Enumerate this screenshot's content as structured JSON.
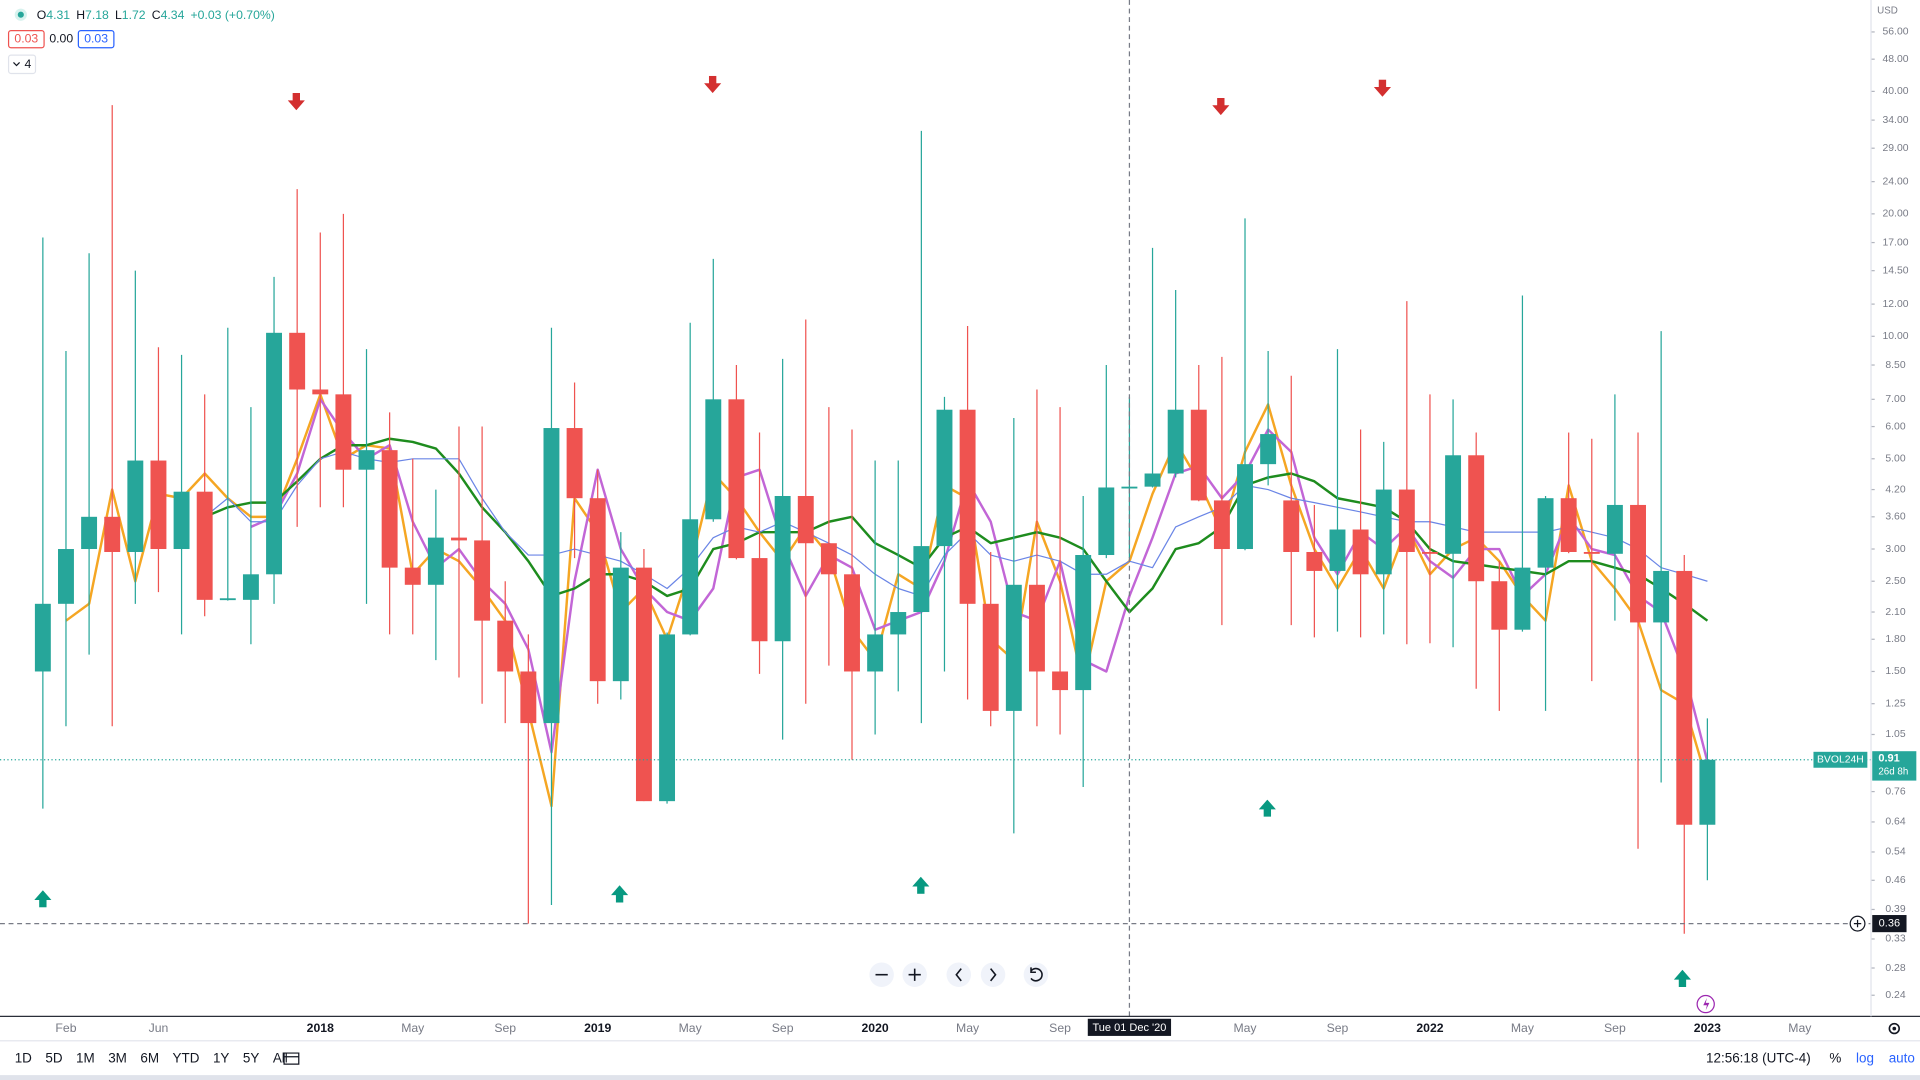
{
  "legend": {
    "ohlc": [
      {
        "label": "O",
        "value": "4.31"
      },
      {
        "label": "H",
        "value": "7.18"
      },
      {
        "label": "L",
        "value": "1.72"
      },
      {
        "label": "C",
        "value": "4.34"
      }
    ],
    "change": "+0.03 (+0.70%)",
    "indicator_values": [
      "0.03",
      "0.00",
      "0.03"
    ],
    "collapse_count": "4"
  },
  "chart_data": {
    "type": "candlestick",
    "log": true,
    "currency": "USD",
    "categories": [
      null,
      "Feb",
      null,
      null,
      null,
      "Jun",
      null,
      null,
      null,
      null,
      null,
      null,
      "2018",
      null,
      null,
      null,
      "May",
      null,
      null,
      null,
      "Sep",
      null,
      null,
      null,
      "2019",
      null,
      null,
      null,
      "May",
      null,
      null,
      null,
      "Sep",
      null,
      null,
      null,
      "2020",
      null,
      null,
      null,
      "May",
      null,
      null,
      null,
      "Sep",
      null,
      null,
      null,
      null,
      null,
      null,
      null,
      "May",
      null,
      null,
      null,
      "Sep",
      null,
      null,
      null,
      "2022",
      null,
      null,
      null,
      "May",
      null,
      null,
      null,
      "Sep",
      null,
      null,
      null,
      "2023"
    ],
    "future_categories": [
      null,
      null,
      null,
      "May"
    ],
    "open": [
      1.5,
      2.2,
      3.0,
      3.6,
      2.95,
      4.95,
      3.0,
      4.15,
      2.25,
      2.25,
      2.6,
      10.2,
      7.4,
      7.2,
      4.7,
      5.25,
      2.7,
      2.45,
      3.2,
      3.15,
      2.0,
      1.5,
      1.12,
      5.95,
      4.0,
      1.42,
      2.7,
      0.72,
      1.85,
      3.55,
      7.0,
      2.85,
      1.78,
      4.05,
      3.1,
      2.6,
      1.5,
      1.85,
      2.1,
      3.05,
      6.6,
      2.2,
      1.2,
      2.45,
      1.5,
      1.35,
      2.9,
      4.25,
      4.27,
      4.6,
      6.6,
      3.95,
      3.0,
      4.85,
      3.95,
      2.95,
      2.65,
      3.35,
      2.6,
      4.2,
      2.95,
      2.92,
      5.1,
      2.5,
      1.9,
      2.7,
      4.0,
      2.95,
      2.92,
      3.85,
      1.98,
      2.65,
      0.63
    ],
    "high": [
      17.5,
      9.2,
      16,
      37,
      14.5,
      9.4,
      9.0,
      7.2,
      10.5,
      6.7,
      14,
      23,
      18,
      20,
      9.3,
      6.5,
      5.0,
      4.2,
      6.0,
      6.0,
      2.5,
      1.85,
      10.5,
      7.7,
      4.7,
      3.3,
      3.0,
      1.87,
      10.8,
      15.5,
      8.5,
      5.8,
      8.8,
      11,
      6.7,
      5.9,
      4.95,
      4.95,
      32,
      7.1,
      10.6,
      2.95,
      6.3,
      7.4,
      6.7,
      4.05,
      8.5,
      7.1,
      16.5,
      13,
      8.5,
      8.9,
      19.5,
      9.2,
      8.0,
      3.85,
      9.3,
      5.9,
      5.5,
      12.2,
      7.2,
      7.0,
      5.8,
      2.8,
      12.6,
      4.05,
      5.8,
      5.6,
      7.2,
      5.8,
      10.3,
      2.9,
      1.15
    ],
    "low": [
      0.69,
      1.1,
      1.65,
      1.1,
      2.2,
      2.35,
      1.85,
      2.05,
      2.24,
      1.75,
      2.2,
      3.4,
      3.8,
      3.8,
      2.2,
      1.85,
      1.85,
      1.6,
      1.45,
      1.25,
      1.12,
      0.36,
      0.4,
      2.85,
      1.25,
      1.28,
      0.72,
      0.71,
      1.84,
      3.5,
      2.83,
      1.48,
      1.02,
      1.25,
      1.55,
      0.91,
      1.05,
      1.34,
      1.12,
      1.5,
      1.28,
      1.1,
      0.6,
      1.1,
      1.05,
      0.78,
      2.85,
      2.85,
      4.25,
      4.5,
      3.93,
      1.95,
      2.98,
      4.3,
      1.95,
      1.82,
      1.88,
      1.82,
      1.85,
      1.75,
      1.76,
      1.72,
      1.36,
      1.2,
      1.88,
      1.2,
      2.93,
      1.42,
      2.0,
      0.55,
      0.8,
      0.34,
      0.46
    ],
    "close": [
      2.2,
      3.0,
      3.6,
      2.95,
      4.95,
      3.0,
      4.15,
      2.25,
      2.27,
      2.6,
      10.2,
      7.4,
      7.2,
      4.7,
      5.25,
      2.7,
      2.45,
      3.2,
      3.15,
      2.0,
      1.5,
      1.12,
      5.95,
      4.0,
      1.42,
      2.7,
      0.72,
      1.85,
      3.55,
      7.0,
      2.85,
      1.78,
      4.05,
      3.1,
      2.6,
      1.5,
      1.85,
      2.1,
      3.05,
      6.6,
      2.2,
      1.2,
      2.45,
      1.5,
      1.35,
      2.9,
      4.25,
      4.27,
      4.6,
      6.6,
      3.95,
      3.0,
      4.85,
      5.75,
      2.95,
      2.65,
      3.35,
      2.6,
      4.2,
      2.95,
      2.92,
      5.1,
      2.5,
      1.9,
      2.7,
      4.0,
      2.95,
      2.92,
      3.85,
      1.98,
      2.65,
      0.63,
      0.91
    ],
    "up_color": "#26a69a",
    "down_color": "#ef5350",
    "series": [
      {
        "color": "#f5a623",
        "width": 2,
        "values": [
          null,
          2.0,
          2.2,
          4.2,
          2.5,
          4.1,
          4.0,
          4.6,
          4.0,
          3.6,
          3.6,
          5.0,
          7.2,
          5.0,
          5.4,
          5.3,
          2.6,
          3.0,
          2.8,
          2.4,
          2.0,
          1.2,
          0.7,
          4.0,
          3.3,
          2.1,
          2.4,
          1.8,
          2.7,
          4.6,
          4.0,
          3.3,
          2.8,
          3.4,
          2.9,
          1.9,
          1.6,
          2.6,
          2.4,
          4.3,
          4.0,
          1.8,
          1.6,
          3.5,
          2.5,
          1.4,
          2.5,
          2.8,
          4.1,
          5.5,
          4.4,
          3.3,
          5.2,
          6.8,
          4.3,
          3.0,
          2.4,
          3.0,
          2.4,
          3.4,
          2.6,
          3.0,
          3.2,
          2.8,
          2.3,
          2.0,
          4.3,
          2.8,
          2.4,
          2.0,
          1.35,
          1.25,
          0.8
        ]
      },
      {
        "color": "#c266d6",
        "width": 2,
        "values": [
          null,
          null,
          null,
          null,
          null,
          null,
          null,
          null,
          null,
          3.4,
          3.6,
          4.6,
          7.0,
          5.8,
          5.0,
          5.4,
          3.5,
          2.7,
          3.0,
          2.5,
          2.2,
          1.7,
          0.95,
          2.5,
          4.7,
          3.0,
          2.4,
          2.1,
          2.0,
          2.4,
          4.5,
          4.7,
          3.1,
          2.3,
          2.9,
          2.7,
          1.9,
          2.0,
          2.1,
          2.8,
          4.4,
          3.5,
          2.1,
          2.0,
          2.8,
          1.6,
          1.5,
          2.3,
          3.2,
          4.6,
          4.8,
          4.0,
          4.6,
          5.9,
          5.2,
          3.2,
          2.6,
          3.3,
          3.0,
          3.4,
          2.8,
          2.55,
          3.0,
          3.0,
          2.3,
          2.6,
          3.6,
          3.0,
          2.9,
          2.3,
          2.1,
          1.5,
          0.9
        ]
      },
      {
        "color": "#1e8c1e",
        "width": 2,
        "values": [
          null,
          null,
          null,
          null,
          null,
          null,
          null,
          3.6,
          3.8,
          3.9,
          3.9,
          4.4,
          5.0,
          5.4,
          5.4,
          5.6,
          5.5,
          5.3,
          4.6,
          3.8,
          3.3,
          2.8,
          2.3,
          2.4,
          2.6,
          2.6,
          2.5,
          2.3,
          2.4,
          3.0,
          3.1,
          3.3,
          3.3,
          3.3,
          3.5,
          3.6,
          3.1,
          2.9,
          2.7,
          3.2,
          3.4,
          3.1,
          3.2,
          3.3,
          3.2,
          3.0,
          2.5,
          2.1,
          2.4,
          3.0,
          3.1,
          3.4,
          4.3,
          4.5,
          4.6,
          4.4,
          4.0,
          3.9,
          3.8,
          3.5,
          3.0,
          2.8,
          2.75,
          2.7,
          2.65,
          2.6,
          2.8,
          2.8,
          2.7,
          2.6,
          2.4,
          2.2,
          2.0
        ]
      },
      {
        "color": "#6a85e6",
        "width": 1,
        "values": [
          null,
          null,
          null,
          null,
          null,
          null,
          null,
          3.6,
          4.0,
          3.5,
          3.5,
          4.3,
          5.0,
          5.2,
          5.0,
          4.9,
          5.0,
          5.0,
          5.0,
          4.0,
          3.3,
          2.9,
          2.9,
          3.0,
          2.9,
          2.8,
          2.6,
          2.4,
          2.7,
          3.2,
          3.4,
          3.3,
          3.5,
          3.3,
          3.1,
          2.9,
          2.6,
          2.4,
          2.3,
          2.9,
          3.3,
          2.9,
          2.8,
          2.9,
          2.8,
          2.6,
          2.6,
          2.8,
          2.7,
          3.4,
          3.6,
          3.8,
          4.3,
          4.2,
          4.0,
          3.9,
          3.8,
          3.7,
          3.6,
          3.5,
          3.5,
          3.4,
          3.3,
          3.3,
          3.3,
          3.3,
          3.4,
          3.3,
          3.2,
          3.0,
          2.7,
          2.6,
          2.5
        ]
      }
    ],
    "ylim": [
      0.213,
      67.1
    ],
    "yticks": [
      {
        "value": 56,
        "label": "56.00"
      },
      {
        "value": 48,
        "label": "48.00"
      },
      {
        "value": 40,
        "label": "40.00"
      },
      {
        "value": 34,
        "label": "34.00"
      },
      {
        "value": 29,
        "label": "29.00"
      },
      {
        "value": 24,
        "label": "24.00"
      },
      {
        "value": 20,
        "label": "20.00"
      },
      {
        "value": 17,
        "label": "17.00"
      },
      {
        "value": 14.5,
        "label": "14.50"
      },
      {
        "value": 12,
        "label": "12.00"
      },
      {
        "value": 10,
        "label": "10.00"
      },
      {
        "value": 8.5,
        "label": "8.50"
      },
      {
        "value": 7,
        "label": "7.00"
      },
      {
        "value": 6,
        "label": "6.00"
      },
      {
        "value": 5,
        "label": "5.00"
      },
      {
        "value": 4.2,
        "label": "4.20"
      },
      {
        "value": 3.6,
        "label": "3.60"
      },
      {
        "value": 3,
        "label": "3.00"
      },
      {
        "value": 2.5,
        "label": "2.50"
      },
      {
        "value": 2.1,
        "label": "2.10"
      },
      {
        "value": 1.8,
        "label": "1.80"
      },
      {
        "value": 1.5,
        "label": "1.50"
      },
      {
        "value": 1.25,
        "label": "1.25"
      },
      {
        "value": 1.05,
        "label": "1.05"
      },
      0.76,
      0.64,
      0.54,
      0.46,
      0.39,
      0.33,
      0.28,
      0.24
    ],
    "last_price": {
      "symbol": "BVOL24H",
      "countdown": "26d 8h"
    },
    "crosshair": {
      "x_label": "Tue 01 Dec '20",
      "index": 47,
      "y": 0.36
    }
  },
  "toolbar": {
    "ranges": [
      "1D",
      "5D",
      "1M",
      "3M",
      "6M",
      "YTD",
      "1Y",
      "5Y",
      "All"
    ],
    "time": "12:56:18 (UTC-4)",
    "options": [
      "%",
      "log",
      "auto"
    ]
  }
}
